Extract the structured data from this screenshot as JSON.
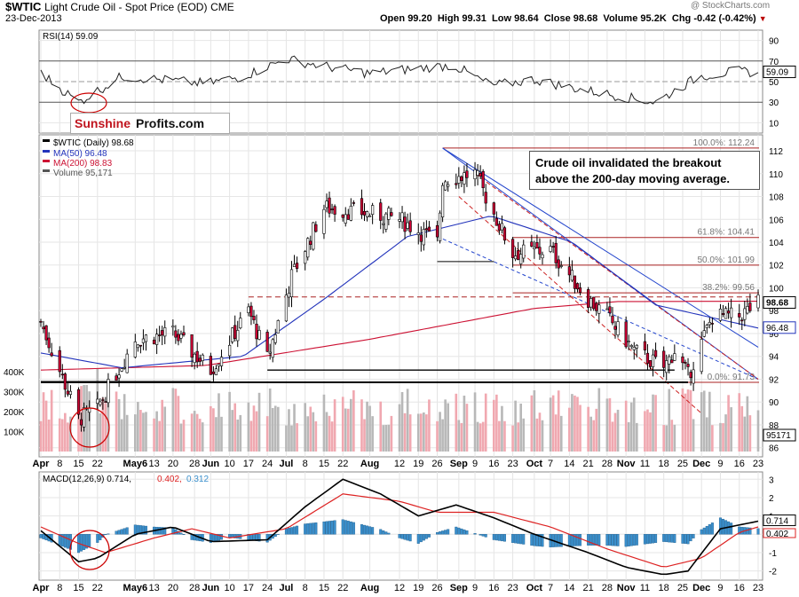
{
  "header": {
    "symbol": "$WTIC",
    "name": "Light Crude Oil - Spot Price (EOD)",
    "exchange": "CME",
    "date": "23-Dec-2013",
    "open_label": "Open",
    "open": "99.20",
    "high_label": "High",
    "high": "99.31",
    "low_label": "Low",
    "low": "98.64",
    "close_label": "Close",
    "close": "98.68",
    "volume_label": "Volume",
    "volume": "95.2K",
    "chg_label": "Chg",
    "chg": "-0.42 (-0.42%)",
    "watermark": "@ StockCharts.com"
  },
  "brand": {
    "part1": "Sunshine",
    "part2": "Profits.com"
  },
  "annotation": "Crude oil invalidated the breakout above the 200-day moving average.",
  "colors": {
    "up": "#ffffff",
    "down": "#cc0033",
    "ma50": "#2233bb",
    "ma200": "#cc1133",
    "vol_up": "#b8b8b8",
    "vol_down": "#f0a8b0",
    "macd": "#000000",
    "signal": "#dd2222",
    "hist": "#3a8fcc",
    "trend_red": "#cc2222",
    "trend_blue": "#2244cc",
    "support": "#000000"
  },
  "chart_data": [
    {
      "type": "line",
      "name": "rsi",
      "legend": "RSI(14) 59.09",
      "y_ticks": [
        10,
        30,
        50,
        70,
        90
      ],
      "ylim": [
        0,
        100
      ],
      "last_label": "59.09",
      "x": [
        "Apr 1",
        "Apr 15",
        "May 1",
        "May 15",
        "Jun 1",
        "Jun 15",
        "Jul 1",
        "Jul 15",
        "Aug 1",
        "Aug 15",
        "Sep 1",
        "Sep 15",
        "Oct 1",
        "Oct 15",
        "Nov 1",
        "Nov 15",
        "Dec 1",
        "Dec 15",
        "Dec 23"
      ],
      "values": [
        58,
        30,
        55,
        52,
        48,
        55,
        72,
        65,
        58,
        62,
        66,
        46,
        52,
        44,
        36,
        30,
        55,
        60,
        59
      ]
    },
    {
      "type": "candlestick",
      "name": "price",
      "legend": "$WTIC (Daily) 98.68",
      "ma50_legend": "MA(50) 96.48",
      "ma200_legend": "MA(200) 98.83",
      "volume_legend": "Volume 95,171",
      "y_ticks": [
        86,
        88,
        90,
        92,
        94,
        96,
        98,
        100,
        102,
        104,
        106,
        108,
        110,
        112
      ],
      "ylim": [
        85.2,
        113.4
      ],
      "x_ticks": [
        "Apr",
        "8",
        "15",
        "22",
        "May6",
        "13",
        "20",
        "28",
        "Jun",
        "10",
        "17",
        "24",
        "Jul",
        "8",
        "15",
        "22",
        "Aug",
        "12",
        "19",
        "26",
        "Sep",
        "9",
        "16",
        "23",
        "Oct",
        "7",
        "14",
        "21",
        "28",
        "Nov",
        "11",
        "18",
        "25",
        "Dec",
        "9",
        "16",
        "23"
      ],
      "close_keypoints": [
        [
          "Apr 1",
          97.0
        ],
        [
          "Apr 15",
          88.5
        ],
        [
          "Apr 22",
          89.5
        ],
        [
          "May 6",
          95.5
        ],
        [
          "May 20",
          96.0
        ],
        [
          "Jun 3",
          92.8
        ],
        [
          "Jun 17",
          98.0
        ],
        [
          "Jun 24",
          93.8
        ],
        [
          "Jul 3",
          101.0
        ],
        [
          "Jul 15",
          107.0
        ],
        [
          "Aug 1",
          106.5
        ],
        [
          "Aug 12",
          106.0
        ],
        [
          "Aug 26",
          104.0
        ],
        [
          "Aug 28",
          109.5
        ],
        [
          "Sep 9",
          110.0
        ],
        [
          "Sep 23",
          103.0
        ],
        [
          "Oct 7",
          103.3
        ],
        [
          "Oct 21",
          99.0
        ],
        [
          "Oct 28",
          97.5
        ],
        [
          "Nov 7",
          94.5
        ],
        [
          "Nov 18",
          93.0
        ],
        [
          "Nov 22",
          94.5
        ],
        [
          "Nov 27",
          92.3
        ],
        [
          "Dec 6",
          97.5
        ],
        [
          "Dec 16",
          97.5
        ],
        [
          "Dec 23",
          98.68
        ]
      ],
      "ma200_keypoints": [
        [
          "Apr 1",
          92.8
        ],
        [
          "Jun 1",
          93.2
        ],
        [
          "Aug 1",
          95.5
        ],
        [
          "Oct 1",
          98.2
        ],
        [
          "Nov 1",
          98.8
        ],
        [
          "Dec 23",
          98.83
        ]
      ],
      "ma50_keypoints": [
        [
          "Apr 1",
          94.3
        ],
        [
          "May 1",
          93.0
        ],
        [
          "Jun 15",
          94.0
        ],
        [
          "Jul 15",
          99.0
        ],
        [
          "Aug 15",
          104.5
        ],
        [
          "Sep 15",
          106.3
        ],
        [
          "Oct 15",
          104.0
        ],
        [
          "Nov 15",
          98.5
        ],
        [
          "Dec 23",
          96.48
        ]
      ],
      "fib_levels": [
        {
          "label": "100.0%: 112.24",
          "value": 112.24
        },
        {
          "label": "61.8%: 104.41",
          "value": 104.41
        },
        {
          "label": "50.0%: 101.99",
          "value": 101.99
        },
        {
          "label": "38.2%: 99.56",
          "value": 99.56
        },
        {
          "label": "0.0%: 91.73",
          "value": 91.73
        }
      ],
      "last_price_label": "98.68",
      "ma50_label": "96.48",
      "support_levels": [
        92.8,
        91.73
      ],
      "volume_axis": [
        "100K",
        "200K",
        "300K",
        "400K"
      ],
      "volume_last_label": "95171"
    },
    {
      "type": "line",
      "name": "macd",
      "legend_main": "MACD(12,26,9) 0.714,",
      "legend_signal": "0.402,",
      "legend_hist": "0.312",
      "y_ticks": [
        -2,
        -1,
        0,
        1,
        2,
        3
      ],
      "ylim": [
        -2.5,
        3.4
      ],
      "macd_label": "0.714",
      "signal_label": "0.402",
      "macd_keypoints": [
        [
          "Apr 1",
          0.2
        ],
        [
          "Apr 15",
          -1.5
        ],
        [
          "Apr 22",
          -1.3
        ],
        [
          "May 6",
          0.0
        ],
        [
          "May 20",
          0.4
        ],
        [
          "Jun 3",
          -0.4
        ],
        [
          "Jun 24",
          -0.3
        ],
        [
          "Jul 8",
          1.5
        ],
        [
          "Jul 22",
          3.0
        ],
        [
          "Aug 5",
          2.2
        ],
        [
          "Aug 19",
          1.0
        ],
        [
          "Sep 2",
          1.6
        ],
        [
          "Sep 16",
          0.9
        ],
        [
          "Oct 1",
          0.0
        ],
        [
          "Oct 21",
          -1.0
        ],
        [
          "Nov 4",
          -1.8
        ],
        [
          "Nov 18",
          -2.2
        ],
        [
          "Nov 27",
          -2.0
        ],
        [
          "Dec 9",
          0.3
        ],
        [
          "Dec 23",
          0.714
        ]
      ],
      "signal_keypoints": [
        [
          "Apr 1",
          0.4
        ],
        [
          "Apr 15",
          -0.5
        ],
        [
          "Apr 25",
          -1.0
        ],
        [
          "May 13",
          -0.2
        ],
        [
          "May 27",
          0.3
        ],
        [
          "Jun 10",
          -0.2
        ],
        [
          "Jul 1",
          0.3
        ],
        [
          "Jul 22",
          2.2
        ],
        [
          "Aug 12",
          1.8
        ],
        [
          "Aug 26",
          1.2
        ],
        [
          "Sep 16",
          1.2
        ],
        [
          "Oct 7",
          0.4
        ],
        [
          "Oct 28",
          -0.8
        ],
        [
          "Nov 18",
          -1.8
        ],
        [
          "Dec 2",
          -1.3
        ],
        [
          "Dec 16",
          0.1
        ],
        [
          "Dec 23",
          0.402
        ]
      ]
    }
  ]
}
